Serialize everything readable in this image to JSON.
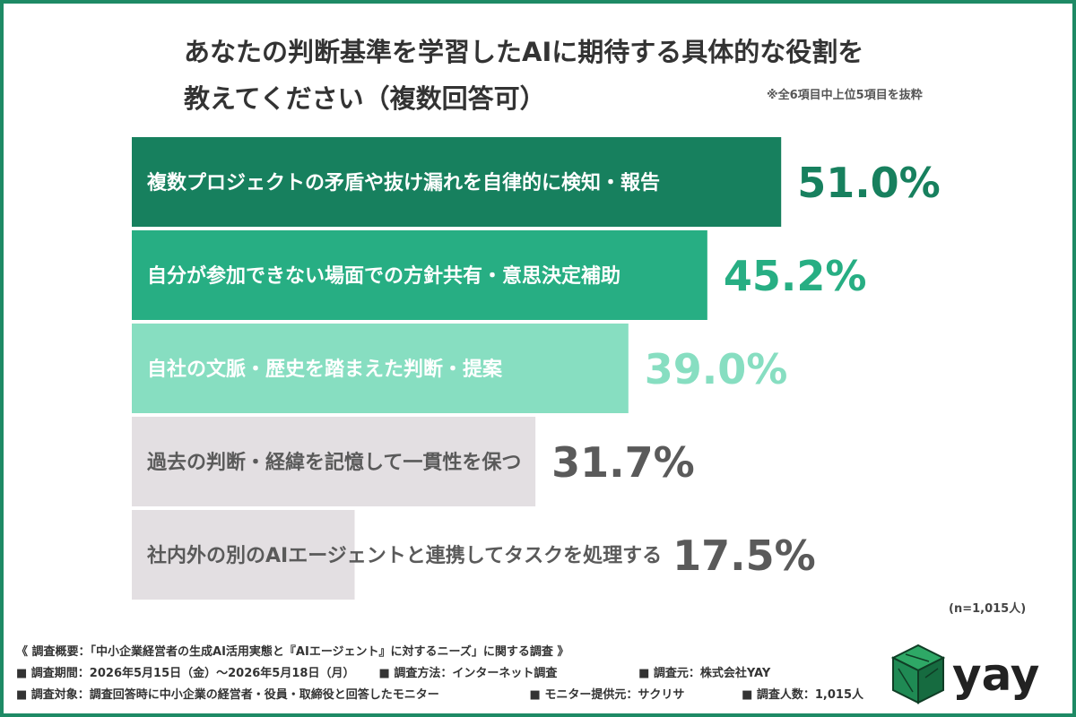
{
  "title_line1": "あなたの判断基準を学習したAIに期待する具体的な役割を",
  "title_line2": "教えてください（複数回答可）",
  "note": "※全6項目中上位5項目を抜粋",
  "sample_size": "(n=1,015人)",
  "colors": {
    "frame": "#1e8a65",
    "bar_colors": [
      "#17805e",
      "#27ae83",
      "#87dec1",
      "#e3dfe2",
      "#e3dfe2"
    ],
    "label_colors": [
      "#ffffff",
      "#ffffff",
      "#ffffff",
      "#5a5a5a",
      "#5a5a5a"
    ],
    "pct_colors": [
      "#17805e",
      "#27ae83",
      "#87dec1",
      "#5a5a5a",
      "#5a5a5a"
    ],
    "logo_green": "#1f8a54",
    "logo_text": "#222222"
  },
  "chart_data": {
    "type": "bar",
    "orientation": "horizontal",
    "categories": [
      "複数プロジェクトの矛盾や抜け漏れを自律的に検知・報告",
      "自分が参加できない場面での方針共有・意思決定補助",
      "自社の文脈・歴史を踏まえた判断・提案",
      "過去の判断・経緯を記憶して一貫性を保つ",
      "社内外の別のAIエージェントと連携してタスクを処理する"
    ],
    "values": [
      51.0,
      45.2,
      39.0,
      31.7,
      17.5
    ],
    "value_labels": [
      "51.0%",
      "45.2%",
      "39.0%",
      "31.7%",
      "17.5%"
    ],
    "xlim": [
      0,
      100
    ],
    "grid": false,
    "legend": "none"
  },
  "footer": {
    "heading": "《 調査概要：「中小企業経営者の生成AI活用実態と『AIエージェント』に対するニーズ」に関する調査 》",
    "period": "■ 調査期間：2026年5月15日（金）〜2026年5月18日（月）",
    "method": "■ 調査方法：インターネット調査",
    "source": "■ 調査元：株式会社YAY",
    "target": "■ 調査対象：調査回答時に中小企業の経営者・役員・取締役と回答したモニター",
    "provider": "■ モニター提供元：サクリサ",
    "count": "■ 調査人数：1,015人"
  },
  "logo": {
    "text": "yay",
    "icon": "cube-logo-icon"
  }
}
